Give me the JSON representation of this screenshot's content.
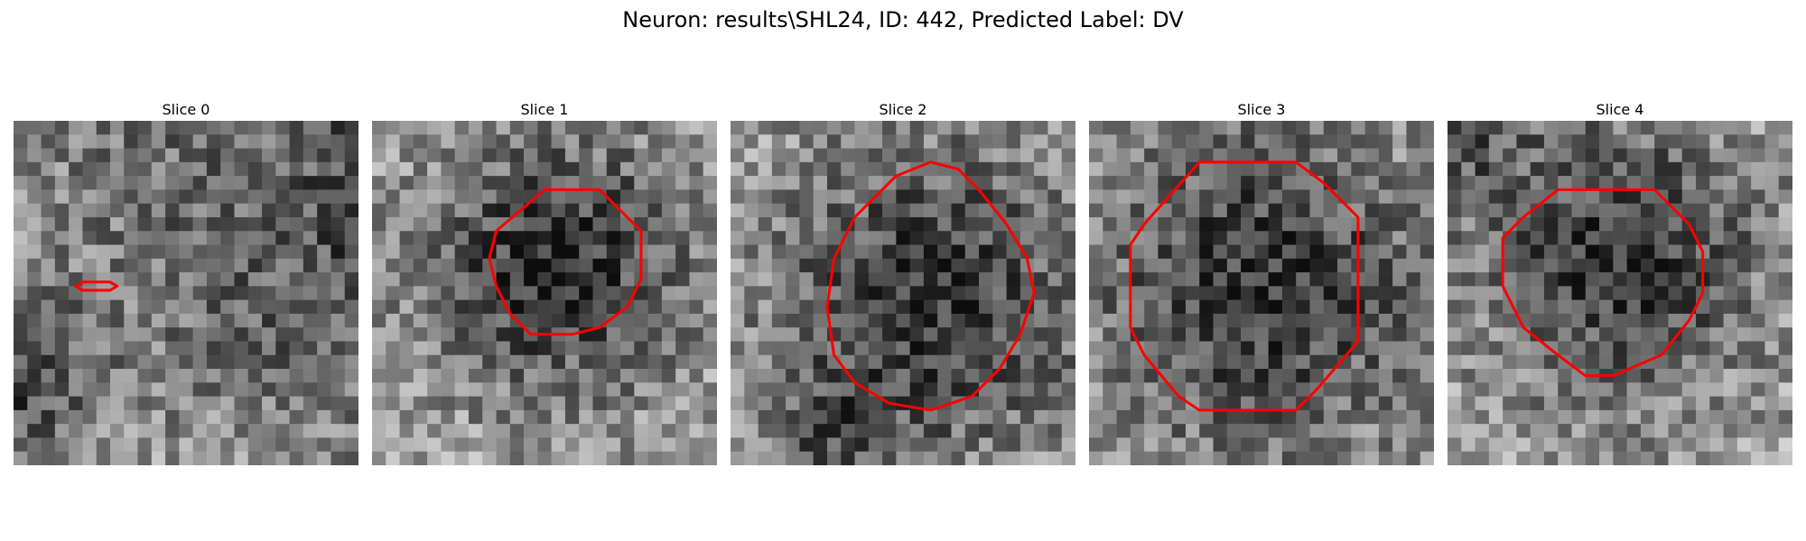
{
  "figure": {
    "suptitle": "Neuron: results\\SHL24, ID: 442, Predicted Label: DV",
    "contour_color": "#ff0000",
    "colormap": "gray"
  },
  "panels": [
    {
      "title": "Slice 0",
      "seed": 11,
      "blobs": [
        [
          26,
          0.55,
          14,
          -0.45
        ],
        [
          0,
          19,
          4,
          -0.35
        ],
        [
          20,
          0,
          6,
          0.2
        ]
      ],
      "contour": [
        [
          4.5,
          12
        ],
        [
          5,
          11.7
        ],
        [
          7,
          11.7
        ],
        [
          7.5,
          12
        ],
        [
          7,
          12.3
        ],
        [
          5,
          12.3
        ]
      ]
    },
    {
      "title": "Slice 1",
      "seed": 23,
      "blobs": [
        [
          13.5,
          10.5,
          6.5,
          -0.45
        ]
      ],
      "contour": [
        [
          12.5,
          5
        ],
        [
          16.5,
          5
        ],
        [
          19.5,
          8
        ],
        [
          19.5,
          11.5
        ],
        [
          18.5,
          13.5
        ],
        [
          16.5,
          15
        ],
        [
          14.5,
          15.5
        ],
        [
          11.5,
          15.5
        ],
        [
          10,
          14
        ],
        [
          9,
          12
        ],
        [
          8.5,
          10
        ],
        [
          9,
          8
        ],
        [
          12.5,
          5
        ]
      ]
    },
    {
      "title": "Slice 2",
      "seed": 37,
      "blobs": [
        [
          14.5,
          13,
          8,
          -0.42
        ],
        [
          7,
          23,
          3,
          -0.2
        ]
      ],
      "contour": [
        [
          14.5,
          3
        ],
        [
          16.5,
          3.5
        ],
        [
          18,
          5
        ],
        [
          20,
          7.5
        ],
        [
          21.5,
          10
        ],
        [
          22,
          12.5
        ],
        [
          21,
          15.5
        ],
        [
          19.5,
          18
        ],
        [
          17.5,
          20
        ],
        [
          14.5,
          21
        ],
        [
          11.5,
          20.5
        ],
        [
          9,
          19
        ],
        [
          7.5,
          17
        ],
        [
          7,
          13.5
        ],
        [
          7.5,
          10
        ],
        [
          9,
          7
        ],
        [
          12,
          4
        ],
        [
          14.5,
          3
        ]
      ]
    },
    {
      "title": "Slice 3",
      "seed": 53,
      "blobs": [
        [
          12.5,
          12,
          8.5,
          -0.42
        ]
      ],
      "contour": [
        [
          8,
          3
        ],
        [
          15,
          3
        ],
        [
          17,
          4.5
        ],
        [
          19.5,
          7
        ],
        [
          19.5,
          10
        ],
        [
          19.5,
          13.5
        ],
        [
          19.5,
          16
        ],
        [
          16.5,
          19.5
        ],
        [
          15,
          21
        ],
        [
          8,
          21
        ],
        [
          6.5,
          20
        ],
        [
          4,
          17
        ],
        [
          3,
          15
        ],
        [
          3,
          9
        ],
        [
          4,
          7.5
        ],
        [
          8,
          3
        ]
      ]
    },
    {
      "title": "Slice 4",
      "seed": 71,
      "blobs": [
        [
          12.5,
          10,
          7,
          -0.42
        ],
        [
          0,
          0,
          4,
          -0.3
        ]
      ],
      "contour": [
        [
          8,
          5
        ],
        [
          15,
          5
        ],
        [
          17.5,
          7.5
        ],
        [
          18.5,
          9.5
        ],
        [
          18.5,
          12.5
        ],
        [
          17.5,
          14.5
        ],
        [
          15.5,
          17
        ],
        [
          12,
          18.5
        ],
        [
          10,
          18.5
        ],
        [
          8,
          17
        ],
        [
          5.5,
          15
        ],
        [
          4,
          12
        ],
        [
          4,
          8.5
        ],
        [
          5.5,
          7
        ],
        [
          8,
          5
        ]
      ]
    }
  ]
}
